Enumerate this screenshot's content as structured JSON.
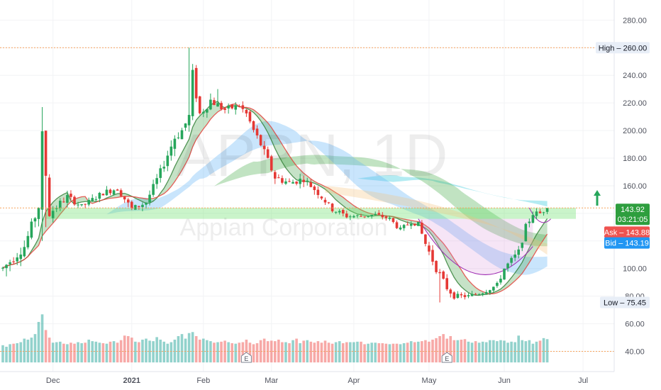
{
  "chart_data": {
    "type": "candlestick",
    "symbol": "APPN",
    "interval": "1D",
    "company": "Appian Corporation",
    "ylim": [
      30,
      292
    ],
    "y_ticks": [
      {
        "value": 280,
        "label": "280.00"
      },
      {
        "value": 260,
        "label": "260.00"
      },
      {
        "value": 240,
        "label": "240.00"
      },
      {
        "value": 220,
        "label": "220.00"
      },
      {
        "value": 200,
        "label": "200.00"
      },
      {
        "value": 180,
        "label": "180.00"
      },
      {
        "value": 160,
        "label": "160.00"
      },
      {
        "value": 140,
        "label": "140.00"
      },
      {
        "value": 120,
        "label": "120.00"
      },
      {
        "value": 100,
        "label": "100.00"
      },
      {
        "value": 80,
        "label": "80.00"
      },
      {
        "value": 60,
        "label": "60.00"
      },
      {
        "value": 40,
        "label": "40.00"
      }
    ],
    "x_ticks": [
      {
        "index": 14,
        "label": "Dec",
        "bold": false
      },
      {
        "index": 36,
        "label": "2021",
        "bold": true
      },
      {
        "index": 56,
        "label": "Feb",
        "bold": false
      },
      {
        "index": 75,
        "label": "Mar",
        "bold": false
      },
      {
        "index": 98,
        "label": "Apr",
        "bold": false
      },
      {
        "index": 119,
        "label": "May",
        "bold": false
      },
      {
        "index": 140,
        "label": "Jun",
        "bold": false
      },
      {
        "index": 162,
        "label": "Jul",
        "bold": false
      }
    ],
    "x_range": [
      -0.5,
      165
    ],
    "price_labels": {
      "high": {
        "label": "High",
        "value": 260,
        "value_text": "260.00"
      },
      "low": {
        "label": "Low",
        "value": 75.45,
        "value_text": "75.45"
      },
      "last": {
        "value": 143.92,
        "value_text": "143.92",
        "countdown": "03:21:05"
      },
      "ask": {
        "label": "Ask",
        "value": 143.88,
        "value_text": "143.88"
      },
      "bid": {
        "label": "Bid",
        "value": 143.19,
        "value_text": "143.19"
      }
    },
    "support_zone": [
      136,
      144
    ],
    "volume_reference": 40,
    "earnings_markers": [
      {
        "index": 68,
        "label": "E"
      },
      {
        "index": 124,
        "label": "E"
      }
    ],
    "anchor_points": [
      [
        0,
        100,
        8.0
      ],
      [
        6,
        116,
        5.5
      ],
      [
        10,
        145,
        6.5
      ],
      [
        11,
        196,
        7.5
      ],
      [
        13,
        140,
        6.0
      ],
      [
        18,
        152,
        4.0
      ],
      [
        22,
        145,
        3.0
      ],
      [
        28,
        155,
        3.5
      ],
      [
        32,
        158,
        3.5
      ],
      [
        36,
        143,
        4.0
      ],
      [
        40,
        148,
        3.5
      ],
      [
        44,
        170,
        4.5
      ],
      [
        48,
        195,
        6.0
      ],
      [
        50,
        200,
        6.5
      ],
      [
        52,
        210,
        7.0
      ],
      [
        53,
        240,
        8.0
      ],
      [
        55,
        212,
        6.0
      ],
      [
        58,
        222,
        5.5
      ],
      [
        62,
        215,
        4.5
      ],
      [
        66,
        218,
        4.0
      ],
      [
        68,
        212,
        4.0
      ],
      [
        70,
        200,
        5.0
      ],
      [
        72,
        190,
        5.0
      ],
      [
        74,
        178,
        5.0
      ],
      [
        76,
        166,
        4.5
      ],
      [
        80,
        162,
        4.5
      ],
      [
        84,
        165,
        4.0
      ],
      [
        88,
        155,
        4.0
      ],
      [
        92,
        143,
        3.5
      ],
      [
        96,
        138,
        3.0
      ],
      [
        100,
        138,
        2.5
      ],
      [
        104,
        139,
        2.5
      ],
      [
        108,
        136,
        2.5
      ],
      [
        111,
        128,
        3.0
      ],
      [
        114,
        134,
        3.0
      ],
      [
        116,
        132,
        3.0
      ],
      [
        118,
        118,
        4.0
      ],
      [
        121,
        100,
        4.5
      ],
      [
        124,
        86,
        4.0
      ],
      [
        126,
        80,
        3.0
      ],
      [
        130,
        80,
        2.5
      ],
      [
        134,
        83,
        2.5
      ],
      [
        138,
        88,
        3.0
      ],
      [
        140,
        100,
        3.5
      ],
      [
        144,
        112,
        4.0
      ],
      [
        146,
        130,
        4.0
      ],
      [
        148,
        140,
        3.5
      ],
      [
        150,
        140,
        3.0
      ],
      [
        152,
        144,
        3.0
      ]
    ],
    "volume_series": [
      {
        "start": 0,
        "values": [
          34,
          31,
          36,
          37,
          38,
          40,
          47,
          45,
          49,
          56,
          80,
          95,
          64,
          49,
          39,
          40,
          41,
          37,
          36,
          39,
          37,
          40,
          38,
          39,
          45,
          42,
          41,
          39,
          38,
          37,
          41,
          42,
          39,
          44,
          53,
          52,
          49,
          41,
          40,
          45,
          47,
          43,
          42,
          50,
          45,
          41,
          37,
          40,
          45,
          52,
          56,
          47,
          58,
          60,
          52,
          45,
          47,
          44,
          42,
          39,
          40,
          41,
          43,
          40,
          38,
          37,
          39,
          40,
          45,
          39,
          36,
          38,
          44,
          47,
          42,
          43,
          42,
          45,
          40,
          40
        ]
      },
      {
        "start": 80,
        "values": [
          38,
          44,
          47,
          38,
          43,
          44,
          41,
          39,
          42,
          39,
          43,
          39,
          37,
          40,
          42,
          38,
          40,
          40,
          40,
          41,
          41,
          36,
          37,
          39,
          39,
          38,
          38,
          37,
          36,
          37,
          37,
          36,
          38,
          39,
          42,
          40,
          41,
          42,
          44,
          41,
          45,
          48,
          52,
          56,
          47,
          52,
          44,
          44,
          45,
          46,
          41,
          39,
          42,
          39,
          41,
          40,
          44,
          44,
          42,
          44,
          43,
          39,
          41,
          40,
          53,
          44,
          42,
          44,
          37,
          41,
          43,
          48,
          46,
          44,
          45,
          43,
          42,
          41,
          40,
          40
        ]
      }
    ],
    "moving_average_ribbons": [
      {
        "name": "short",
        "color": "#43a047",
        "trend_color": "#e53935"
      },
      {
        "name": "medium",
        "color": "#64b5f6"
      },
      {
        "name": "long",
        "color": "#4caf50"
      },
      {
        "name": "longest",
        "color": "#26c6da"
      }
    ]
  }
}
